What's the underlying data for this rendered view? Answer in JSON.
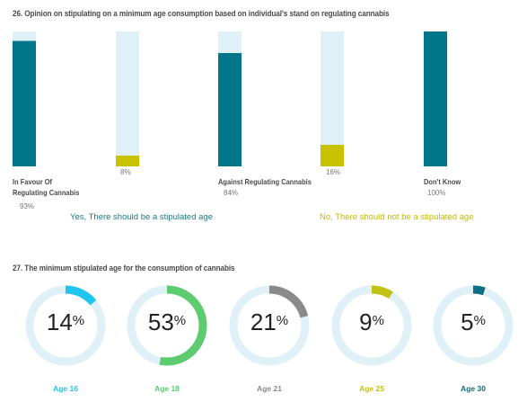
{
  "q26": {
    "title": "26. Opinion on stipulating on a minimum age consumption based on individual's stand on regulating cannabis"
  },
  "q27": {
    "title": "27. The minimum stipulated age for the consumption of cannabis"
  },
  "colors": {
    "teal": "#00768a",
    "olive": "#c8c200",
    "track": "#dff0f7",
    "cyan": "#1fc5ef",
    "green": "#5ccc6e",
    "grey": "#8a8a8a",
    "yellowgreen": "#c2c214",
    "darkteal": "#0f6e85"
  },
  "chart_data": [
    {
      "type": "bar",
      "title": "26. Opinion on stipulating on a minimum age consumption based on individual's stand on regulating cannabis",
      "ylim": [
        0,
        100
      ],
      "categories": [
        "In Favour Of Regulating Cannabis",
        "Against Regulating Cannabis",
        "Don't Know"
      ],
      "series": [
        {
          "name": "Yes, There should be a stipulated age",
          "color": "#00768a",
          "values": [
            93,
            84,
            100
          ],
          "value_labels": [
            "93%",
            "84%",
            "100%"
          ]
        },
        {
          "name": "No, There should not be a stipulated age",
          "color": "#c8c200",
          "values": [
            8,
            16,
            null
          ],
          "value_labels": [
            "8%",
            "16%",
            ""
          ]
        }
      ],
      "legend": "bottom"
    },
    {
      "type": "pie",
      "title": "27. The minimum stipulated age for the consumption of cannabis",
      "categories": [
        "Age 16",
        "Age 18",
        "Age 21",
        "Age 25",
        "Age 30"
      ],
      "values": [
        14,
        53,
        21,
        9,
        5
      ],
      "value_labels": [
        "14",
        "53",
        "21",
        "9",
        "5"
      ],
      "percent_sign": "%",
      "colors": [
        "#1fc5ef",
        "#5ccc6e",
        "#8a8a8a",
        "#c2c214",
        "#0f6e85"
      ]
    }
  ]
}
